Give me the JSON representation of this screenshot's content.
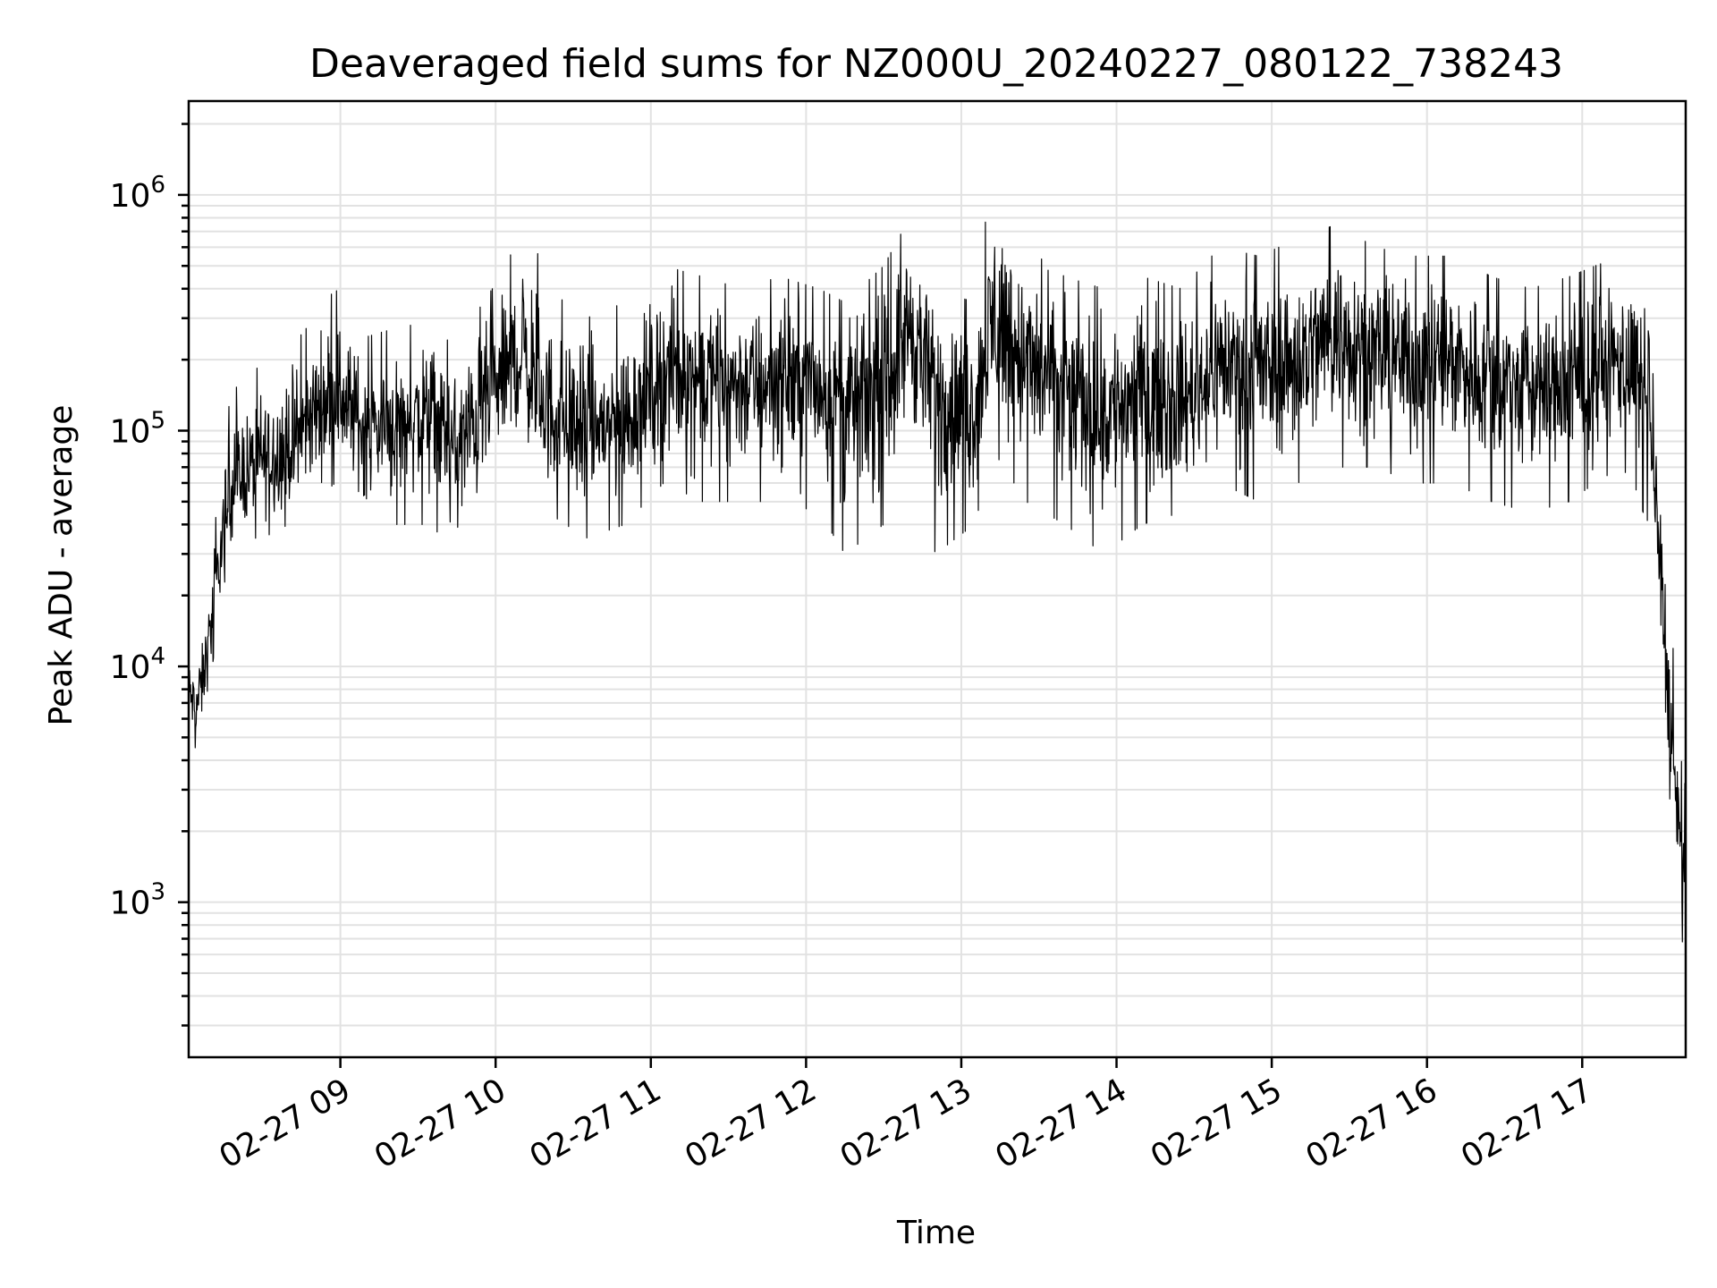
{
  "chart_data": {
    "type": "line",
    "title": "Deaveraged field sums for NZ000U_20240227_080122_738243",
    "xlabel": "Time",
    "ylabel": "Peak ADU - average",
    "x_range": [
      "2024-02-27T08:01:22",
      "2024-02-27T17:40:00"
    ],
    "y_scale": "log",
    "ylim": [
      220,
      2500000
    ],
    "grid": true,
    "legend": "none",
    "color": "#000000",
    "x_ticks": [
      {
        "time": "2024-02-27T09:00:00",
        "label": "02-27 09"
      },
      {
        "time": "2024-02-27T10:00:00",
        "label": "02-27 10"
      },
      {
        "time": "2024-02-27T11:00:00",
        "label": "02-27 11"
      },
      {
        "time": "2024-02-27T12:00:00",
        "label": "02-27 12"
      },
      {
        "time": "2024-02-27T13:00:00",
        "label": "02-27 13"
      },
      {
        "time": "2024-02-27T14:00:00",
        "label": "02-27 14"
      },
      {
        "time": "2024-02-27T15:00:00",
        "label": "02-27 15"
      },
      {
        "time": "2024-02-27T16:00:00",
        "label": "02-27 16"
      },
      {
        "time": "2024-02-27T17:00:00",
        "label": "02-27 17"
      }
    ],
    "y_ticks": [
      {
        "value": 1000,
        "base": "10",
        "exp": "3"
      },
      {
        "value": 10000,
        "base": "10",
        "exp": "4"
      },
      {
        "value": 100000,
        "base": "10",
        "exp": "5"
      },
      {
        "value": 1000000,
        "base": "10",
        "exp": "6"
      }
    ],
    "series": [
      {
        "x": [
          "2024-02-27T08:01:22",
          "2024-02-27T08:04:00",
          "2024-02-27T08:07:00",
          "2024-02-27T08:10:00",
          "2024-02-27T08:14:00",
          "2024-02-27T08:18:00",
          "2024-02-27T08:24:00",
          "2024-02-27T08:30:00",
          "2024-02-27T08:40:00",
          "2024-02-27T08:50:00",
          "2024-02-27T08:58:00",
          "2024-02-27T09:10:00",
          "2024-02-27T09:25:00",
          "2024-02-27T09:36:00",
          "2024-02-27T09:45:00",
          "2024-02-27T09:55:00",
          "2024-02-27T10:05:00",
          "2024-02-27T10:10:00",
          "2024-02-27T10:20:00",
          "2024-02-27T10:35:00",
          "2024-02-27T10:50:00",
          "2024-02-27T11:05:00",
          "2024-02-27T11:20:00",
          "2024-02-27T11:35:00",
          "2024-02-27T11:50:00",
          "2024-02-27T12:05:00",
          "2024-02-27T12:15:00",
          "2024-02-27T12:30:00",
          "2024-02-27T12:40:00",
          "2024-02-27T12:50:00",
          "2024-02-27T13:05:00",
          "2024-02-27T13:13:00",
          "2024-02-27T13:25:00",
          "2024-02-27T13:40:00",
          "2024-02-27T13:55:00",
          "2024-02-27T14:10:00",
          "2024-02-27T14:25:00",
          "2024-02-27T14:40:00",
          "2024-02-27T14:55:00",
          "2024-02-27T15:10:00",
          "2024-02-27T15:25:00",
          "2024-02-27T15:40:00",
          "2024-02-27T15:55:00",
          "2024-02-27T16:10:00",
          "2024-02-27T16:25:00",
          "2024-02-27T16:40:00",
          "2024-02-27T16:55:00",
          "2024-02-27T17:05:00",
          "2024-02-27T17:15:00",
          "2024-02-27T17:20:00",
          "2024-02-27T17:25:00",
          "2024-02-27T17:28:00",
          "2024-02-27T17:31:00",
          "2024-02-27T17:34:00",
          "2024-02-27T17:37:00",
          "2024-02-27T17:40:00"
        ],
        "y": [
          8000,
          6500,
          9000,
          15000,
          30000,
          60000,
          65000,
          75000,
          80000,
          120000,
          150000,
          100000,
          110000,
          120000,
          80000,
          130000,
          180000,
          200000,
          120000,
          100000,
          110000,
          180000,
          170000,
          160000,
          170000,
          160000,
          130000,
          150000,
          300000,
          150000,
          120000,
          300000,
          200000,
          150000,
          120000,
          150000,
          130000,
          200000,
          180000,
          200000,
          280000,
          220000,
          200000,
          210000,
          170000,
          150000,
          160000,
          180000,
          200000,
          180000,
          120000,
          60000,
          20000,
          5000,
          2000,
          1200
        ],
        "low": [
          5000,
          4500,
          5000,
          9000,
          20000,
          30000,
          35000,
          35000,
          40000,
          50000,
          60000,
          40000,
          40000,
          40000,
          25000,
          40000,
          70000,
          80000,
          45000,
          35000,
          40000,
          60000,
          50000,
          50000,
          50000,
          45000,
          30000,
          40000,
          80000,
          30000,
          40000,
          80000,
          50000,
          40000,
          30000,
          40000,
          45000,
          60000,
          50000,
          60000,
          70000,
          70000,
          60000,
          60000,
          50000,
          45000,
          50000,
          60000,
          70000,
          60000,
          40000,
          25000,
          8000,
          2000,
          800,
          400
        ],
        "high": [
          12000,
          10000,
          15000,
          25000,
          80000,
          150000,
          160000,
          200000,
          220000,
          300000,
          400000,
          250000,
          280000,
          280000,
          220000,
          350000,
          500000,
          1000000,
          400000,
          300000,
          350000,
          500000,
          450000,
          400000,
          450000,
          400000,
          350000,
          500000,
          800000,
          400000,
          350000,
          1500000,
          600000,
          450000,
          400000,
          450000,
          400000,
          600000,
          550000,
          650000,
          750000,
          600000,
          550000,
          550000,
          450000,
          400000,
          450000,
          500000,
          550000,
          500000,
          300000,
          150000,
          50000,
          20000,
          5000,
          3000
        ]
      }
    ]
  }
}
